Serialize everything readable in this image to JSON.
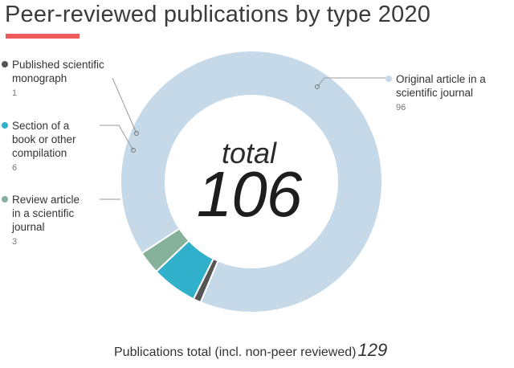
{
  "title": "Peer-reviewed publications by type 2020",
  "accent_color": "#f05a5a",
  "center": {
    "label": "total",
    "value": "106"
  },
  "footer": {
    "label": "Publications total (incl. non-peer reviewed)",
    "value": "129"
  },
  "chart_data": {
    "type": "pie",
    "subtype": "donut",
    "title": "Peer-reviewed publications by type 2020",
    "total": 106,
    "slices": [
      {
        "label": "Original article in a scientific journal",
        "value": 96,
        "display": "96",
        "color": "#c5d9e8"
      },
      {
        "label": "Published scientific\nmonograph",
        "value": 1,
        "display": "1",
        "color": "#555555"
      },
      {
        "label": "Section of a\nbook or other\ncompilation",
        "value": 6,
        "display": "6",
        "color": "#31b0cb"
      },
      {
        "label": "Review article\nin a scientific\njournal",
        "value": 3,
        "display": "3",
        "color": "#86b19a"
      }
    ],
    "legend_placement": "around the chart with leader lines"
  }
}
